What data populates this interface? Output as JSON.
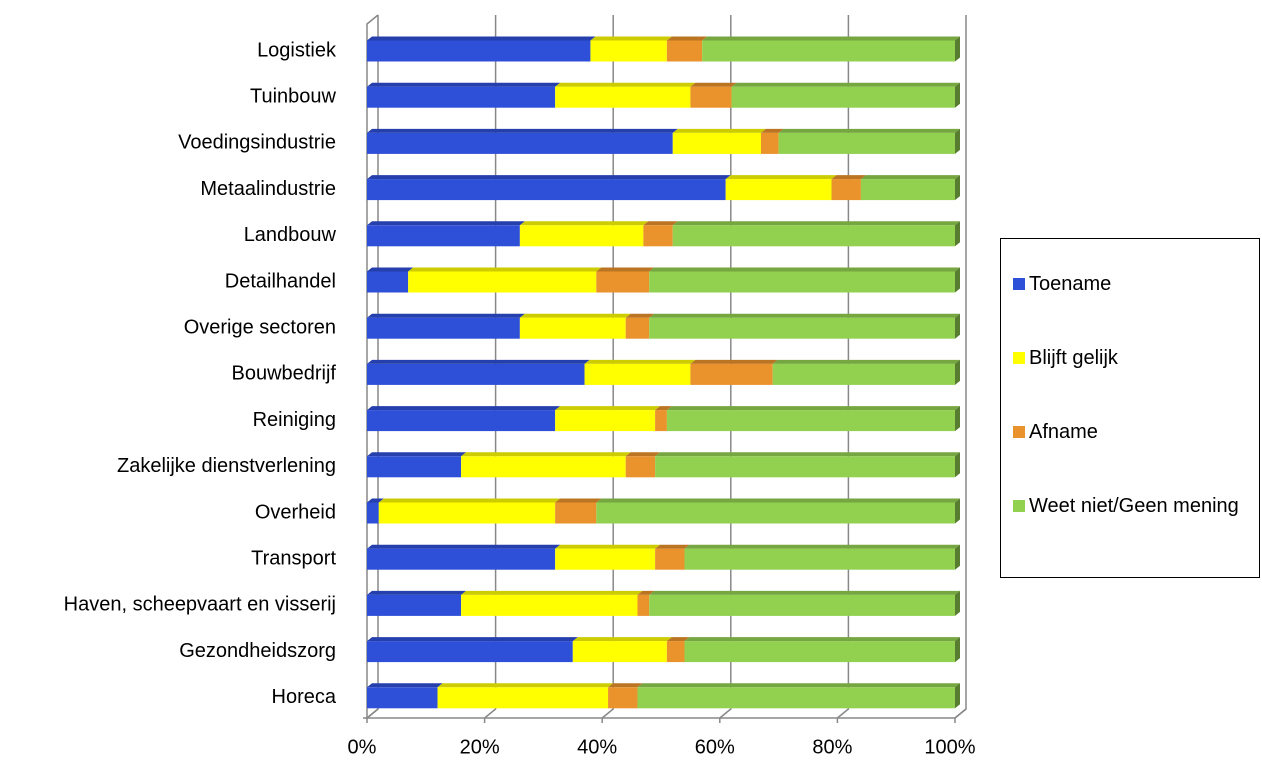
{
  "chart_data": {
    "type": "stacked_barh",
    "categories": [
      "Logistiek",
      "Tuinbouw",
      "Voedingsindustrie",
      "Metaalindustrie",
      "Landbouw",
      "Detailhandel",
      "Overige sectoren",
      "Bouwbedrijf",
      "Reiniging",
      "Zakelijke dienstverlening",
      "Overheid",
      "Transport",
      "Haven, scheepvaart en visserij",
      "Gezondheidszorg",
      "Horeca"
    ],
    "series": [
      {
        "name": "Toename",
        "color": "#2e4fd8",
        "values": [
          38,
          32,
          52,
          61,
          26,
          7,
          26,
          37,
          32,
          16,
          2,
          32,
          16,
          35,
          12
        ]
      },
      {
        "name": "Blijft gelijk",
        "color": "#ffff00",
        "values": [
          13,
          23,
          15,
          18,
          21,
          32,
          18,
          18,
          17,
          28,
          30,
          17,
          30,
          16,
          29
        ]
      },
      {
        "name": "Afname",
        "color": "#ea922b",
        "values": [
          6,
          7,
          3,
          5,
          5,
          9,
          4,
          14,
          2,
          5,
          7,
          5,
          2,
          3,
          5
        ]
      },
      {
        "name": "Weet niet/Geen mening",
        "color": "#92d050",
        "values": [
          43,
          38,
          30,
          16,
          48,
          52,
          52,
          31,
          49,
          51,
          61,
          46,
          52,
          46,
          54
        ]
      }
    ],
    "xlim": [
      0,
      100
    ],
    "xticks": [
      {
        "value": 0,
        "label": "0%"
      },
      {
        "value": 20,
        "label": "20%"
      },
      {
        "value": 40,
        "label": "40%"
      },
      {
        "value": 60,
        "label": "60%"
      },
      {
        "value": 80,
        "label": "80%"
      },
      {
        "value": 100,
        "label": "100%"
      }
    ],
    "grid": true,
    "legend": "right"
  }
}
